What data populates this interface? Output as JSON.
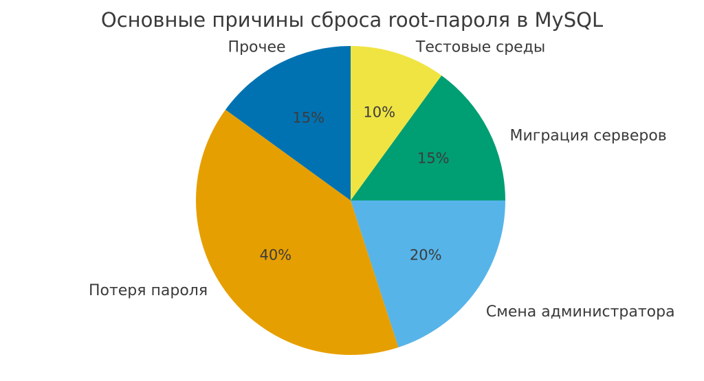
{
  "chart_data": {
    "type": "pie",
    "title": "Основные причины сброса root-пароля в MySQL",
    "categories": [
      "Тестовые среды",
      "Миграция серверов",
      "Смена администратора",
      "Потеря пароля",
      "Прочее"
    ],
    "values": [
      10,
      15,
      20,
      40,
      15
    ],
    "percent_labels": [
      "10%",
      "15%",
      "20%",
      "40%",
      "15%"
    ],
    "colors": [
      "#F0E442",
      "#009E73",
      "#56B4E9",
      "#E69F00",
      "#0072B2"
    ],
    "start_angle": 90,
    "direction": "clockwise",
    "label_position": "outside",
    "pct_distance": 0.6,
    "legend": "none",
    "background": "#ffffff",
    "text_color": "#3a3a3a"
  }
}
